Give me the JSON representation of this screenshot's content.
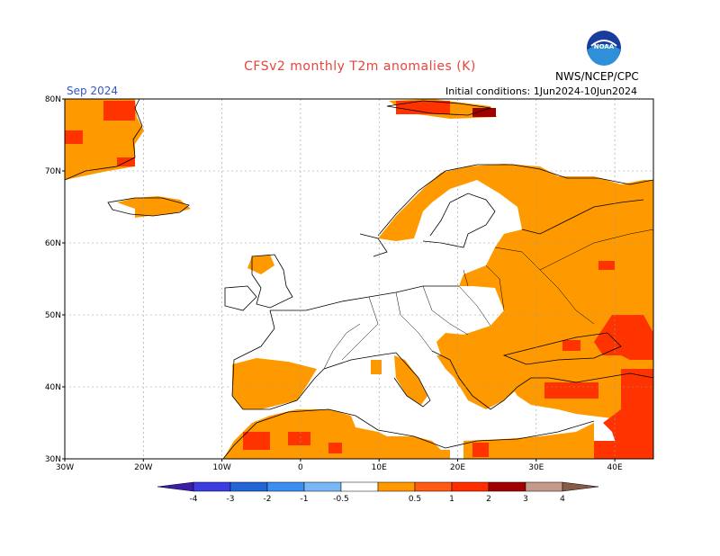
{
  "title": "CFSv2 monthly T2m anomalies (K)",
  "agency": "NWS/NCEP/CPC",
  "logo_text": "NOAA",
  "month": "Sep 2024",
  "initial_conditions": "Initial conditions: 1Jun2024-10Jun2024",
  "lat_labels": [
    "80N",
    "70N",
    "60N",
    "50N",
    "40N",
    "30N"
  ],
  "lon_labels": [
    "30W",
    "20W",
    "10W",
    "0",
    "10E",
    "20E",
    "30E",
    "40E"
  ],
  "colorbar": {
    "labels": [
      "-4",
      "-3",
      "-2",
      "-1",
      "-0.5",
      "0.5",
      "1",
      "2",
      "3",
      "4"
    ],
    "colors": [
      "#3b1ea8",
      "#3c3ce0",
      "#2266d6",
      "#3b8ff0",
      "#78b8f7",
      "#ffffff",
      "#ff9900",
      "#ff5b14",
      "#ff2d00",
      "#a00000",
      "#c59a8a",
      "#8a5a48"
    ]
  },
  "anomaly_colors": {
    "0.5-1": "#ff9900",
    "1-2": "#ff3300",
    "2-3": "#a00000"
  }
}
